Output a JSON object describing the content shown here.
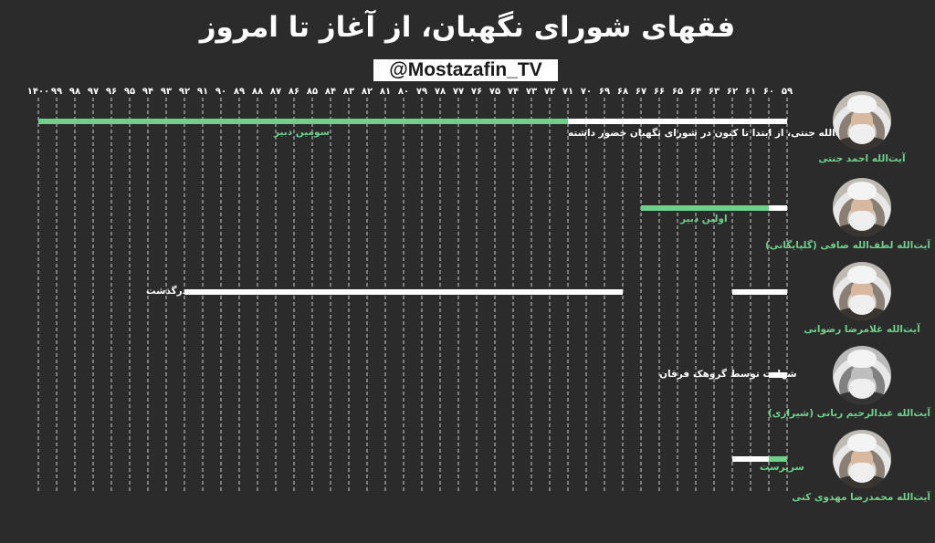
{
  "title": "فقهای شورای نگهبان، از آغاز تا امروز",
  "handle": "@Mostazafin_TV",
  "colors": {
    "background": "#2b2b2b",
    "green": "#6fd08c",
    "white": "#ffffff"
  },
  "chart_data": {
    "type": "timeline",
    "axis": {
      "direction": "right-to-left",
      "ticks": [
        59,
        60,
        61,
        62,
        63,
        64,
        65,
        66,
        67,
        68,
        69,
        70,
        71,
        72,
        73,
        74,
        75,
        76,
        77,
        78,
        79,
        80,
        81,
        82,
        83,
        84,
        85,
        86,
        87,
        88,
        89,
        90,
        91,
        92,
        93,
        94,
        95,
        96,
        97,
        98,
        99,
        1400
      ],
      "tick_labels": [
        "۵۹",
        "۶۰",
        "۶۱",
        "۶۲",
        "۶۳",
        "۶۴",
        "۶۵",
        "۶۶",
        "۶۷",
        "۶۸",
        "۶۹",
        "۷۰",
        "۷۱",
        "۷۲",
        "۷۳",
        "۷۴",
        "۷۵",
        "۷۶",
        "۷۷",
        "۷۸",
        "۷۹",
        "۸۰",
        "۸۱",
        "۸۲",
        "۸۳",
        "۸۴",
        "۸۵",
        "۸۶",
        "۸۷",
        "۸۸",
        "۸۹",
        "۹۰",
        "۹۱",
        "۹۲",
        "۹۳",
        "۹۴",
        "۹۵",
        "۹۶",
        "۹۷",
        "۹۸",
        "۹۹",
        "۱۴۰۰"
      ],
      "grid": "dashed vertical"
    },
    "rows": [
      {
        "name": "آیت‌الله احمد جنتی",
        "segments": [
          {
            "from": 59,
            "to": 71,
            "color": "white"
          },
          {
            "from": 71,
            "to": 100,
            "color": "green"
          }
        ],
        "annotations": [
          "سومین دبیر",
          "آیت‌الله جنتی، از ابتدا تا کنون در شورای نگهبان حضور داشته"
        ]
      },
      {
        "name": "آیت‌الله لطف‌الله صافی (گلپایگانی)",
        "segments": [
          {
            "from": 59,
            "to": 60,
            "color": "white"
          },
          {
            "from": 60,
            "to": 67,
            "color": "green"
          }
        ],
        "annotations": [
          "اولین دبیر"
        ]
      },
      {
        "name": "آیت‌الله غلامرضا رضوانی",
        "segments": [
          {
            "from": 59,
            "to": 62,
            "color": "white"
          },
          {
            "from": 68,
            "to": 92,
            "color": "white"
          }
        ],
        "annotations": [
          "درگذشت"
        ]
      },
      {
        "name": "آیت‌الله عبدالرحیم ربانی (شیرازی)",
        "segments": [
          {
            "from": 59,
            "to": 60,
            "color": "white"
          }
        ],
        "annotations": [
          "شهادت توسط گروهک فرقان"
        ]
      },
      {
        "name": "آیت‌الله محمدرضا مهدوی کنی",
        "segments": [
          {
            "from": 59,
            "to": 60,
            "color": "green"
          },
          {
            "from": 60,
            "to": 62,
            "color": "white"
          }
        ],
        "annotations": [
          "سرپرست"
        ]
      }
    ]
  }
}
